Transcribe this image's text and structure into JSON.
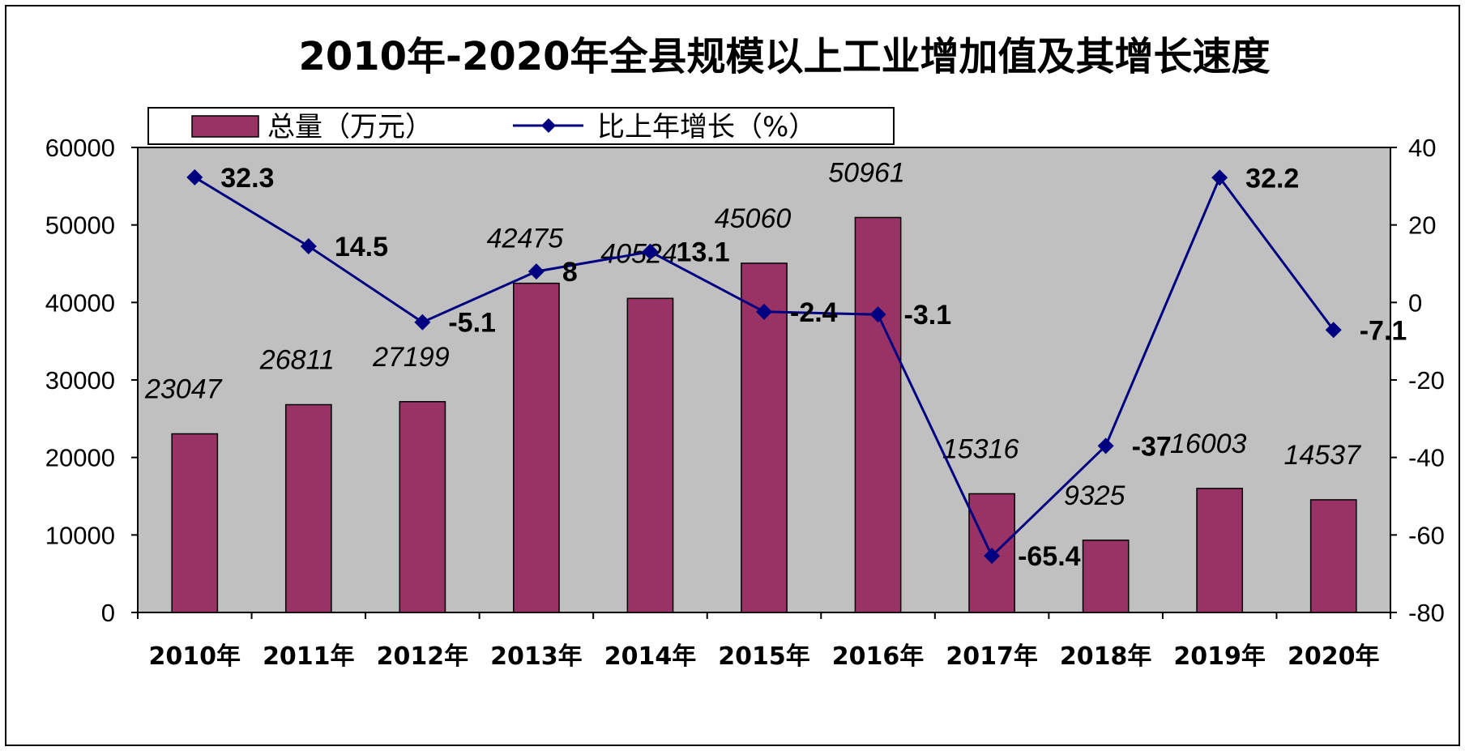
{
  "chart_data": {
    "type": "bar",
    "title": "2010年-2020年全县规模以上工业增加值及其增长速度",
    "categories": [
      "2010年",
      "2011年",
      "2012年",
      "2013年",
      "2014年",
      "2015年",
      "2016年",
      "2017年",
      "2018年",
      "2019年",
      "2020年"
    ],
    "series": [
      {
        "name": "总量（万元）",
        "type": "bar",
        "axis": "left",
        "color": "#993366",
        "values": [
          23047,
          26811,
          27199,
          42475,
          40524,
          45060,
          50961,
          15316,
          9325,
          16003,
          14537
        ],
        "labels": [
          "23047",
          "26811",
          "27199",
          "42475",
          "40524",
          "45060",
          "50961",
          "15316",
          "9325",
          "16003",
          "14537"
        ]
      },
      {
        "name": "比上年增长（%）",
        "type": "line",
        "axis": "right",
        "color": "#000080",
        "values": [
          32.3,
          14.5,
          -5.1,
          8,
          13.1,
          -2.4,
          -3.1,
          -65.4,
          -37,
          32.2,
          -7.1
        ],
        "labels": [
          "32.3",
          "14.5",
          "-5.1",
          "8",
          "13.1",
          "-2.4",
          "-3.1",
          "-65.4",
          "-37",
          "32.2",
          "-7.1"
        ]
      }
    ],
    "y_left": {
      "ticks": [
        "60000",
        "50000",
        "40000",
        "30000",
        "20000",
        "10000",
        "0"
      ],
      "ylim": [
        0,
        60000
      ]
    },
    "y_right": {
      "ticks": [
        "40",
        "20",
        "0",
        "-20",
        "-40",
        "-60",
        "-80"
      ],
      "ylim": [
        -80,
        40
      ]
    },
    "legend_position": "top-left",
    "plot_background": "#c0c0c0",
    "grid": false
  }
}
